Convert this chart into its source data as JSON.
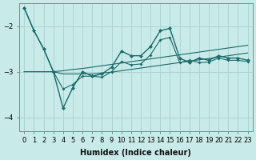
{
  "xlabel": "Humidex (Indice chaleur)",
  "bg_color": "#c8eae8",
  "grid_color": "#aed4d2",
  "line_color": "#1a6b6b",
  "x": [
    0,
    1,
    2,
    3,
    4,
    5,
    6,
    7,
    8,
    9,
    10,
    11,
    12,
    13,
    14,
    15,
    16,
    17,
    18,
    19,
    20,
    21,
    22,
    23
  ],
  "y_main_marker": [
    -1.6,
    -2.1,
    -2.5,
    -3.0,
    -3.8,
    -3.35,
    -3.0,
    -3.1,
    -3.05,
    -2.9,
    -2.55,
    -2.65,
    -2.65,
    -2.45,
    -2.1,
    -2.05,
    -2.7,
    -2.8,
    -2.7,
    -2.75,
    -2.65,
    -2.7,
    -2.7,
    -2.75
  ],
  "y_upper_straight": [
    -3.0,
    -3.0,
    -3.0,
    -3.0,
    -2.98,
    -2.95,
    -2.93,
    -2.9,
    -2.87,
    -2.84,
    -2.81,
    -2.78,
    -2.75,
    -2.72,
    -2.69,
    -2.66,
    -2.63,
    -2.6,
    -2.57,
    -2.54,
    -2.51,
    -2.48,
    -2.45,
    -2.42
  ],
  "y_lower_straight": [
    -3.0,
    -3.0,
    -3.0,
    -3.0,
    -3.05,
    -3.05,
    -3.05,
    -3.05,
    -3.03,
    -3.01,
    -2.98,
    -2.95,
    -2.92,
    -2.89,
    -2.86,
    -2.83,
    -2.8,
    -2.77,
    -2.74,
    -2.71,
    -2.68,
    -2.65,
    -2.62,
    -2.59
  ],
  "y_lower_marker": [
    -1.6,
    -2.1,
    -2.5,
    -3.0,
    -3.38,
    -3.28,
    -3.1,
    -3.1,
    -3.12,
    -3.0,
    -2.78,
    -2.85,
    -2.83,
    -2.63,
    -2.3,
    -2.25,
    -2.8,
    -2.75,
    -2.8,
    -2.79,
    -2.7,
    -2.75,
    -2.75,
    -2.78
  ],
  "ylim": [
    -4.3,
    -1.5
  ],
  "xlim": [
    -0.5,
    23.5
  ],
  "yticks": [
    -4,
    -3,
    -2
  ],
  "xticks": [
    0,
    1,
    2,
    3,
    4,
    5,
    6,
    7,
    8,
    9,
    10,
    11,
    12,
    13,
    14,
    15,
    16,
    17,
    18,
    19,
    20,
    21,
    22,
    23
  ]
}
